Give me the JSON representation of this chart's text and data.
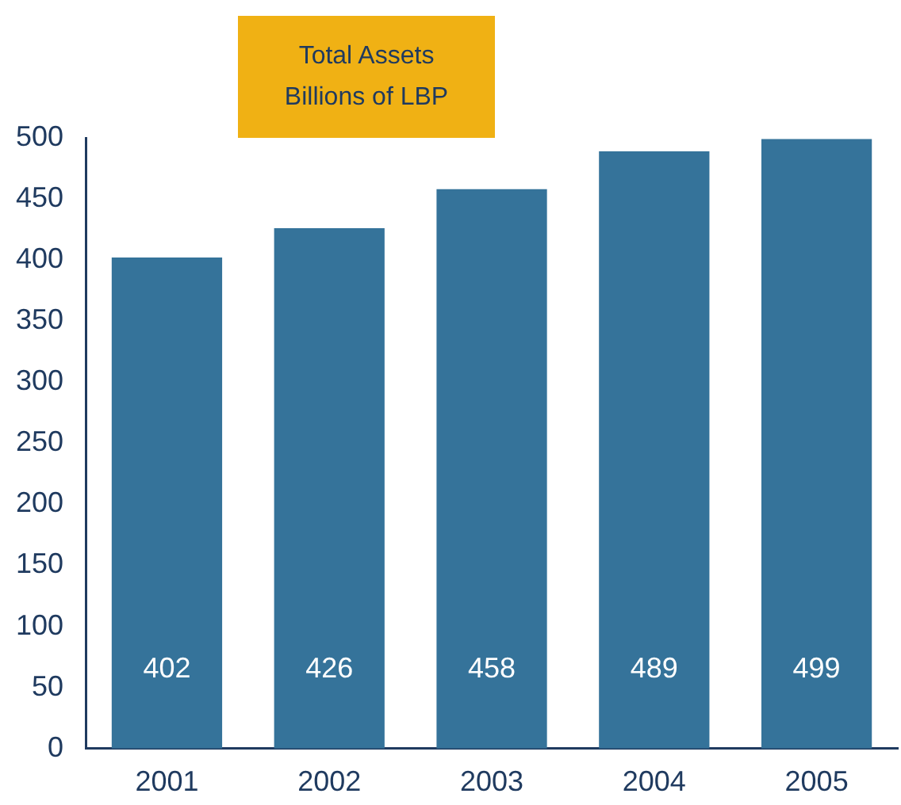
{
  "chart_data": {
    "type": "bar",
    "title": "Total Assets",
    "subtitle": "Billions of LBP",
    "categories": [
      "2001",
      "2002",
      "2003",
      "2004",
      "2005"
    ],
    "values": [
      402,
      426,
      458,
      489,
      499
    ],
    "color": "#35739a",
    "ylim": [
      0,
      500
    ],
    "yticks": [
      0,
      50,
      100,
      150,
      200,
      250,
      300,
      350,
      400,
      450,
      500
    ],
    "grid": false,
    "legend": false,
    "data_labels": true
  }
}
